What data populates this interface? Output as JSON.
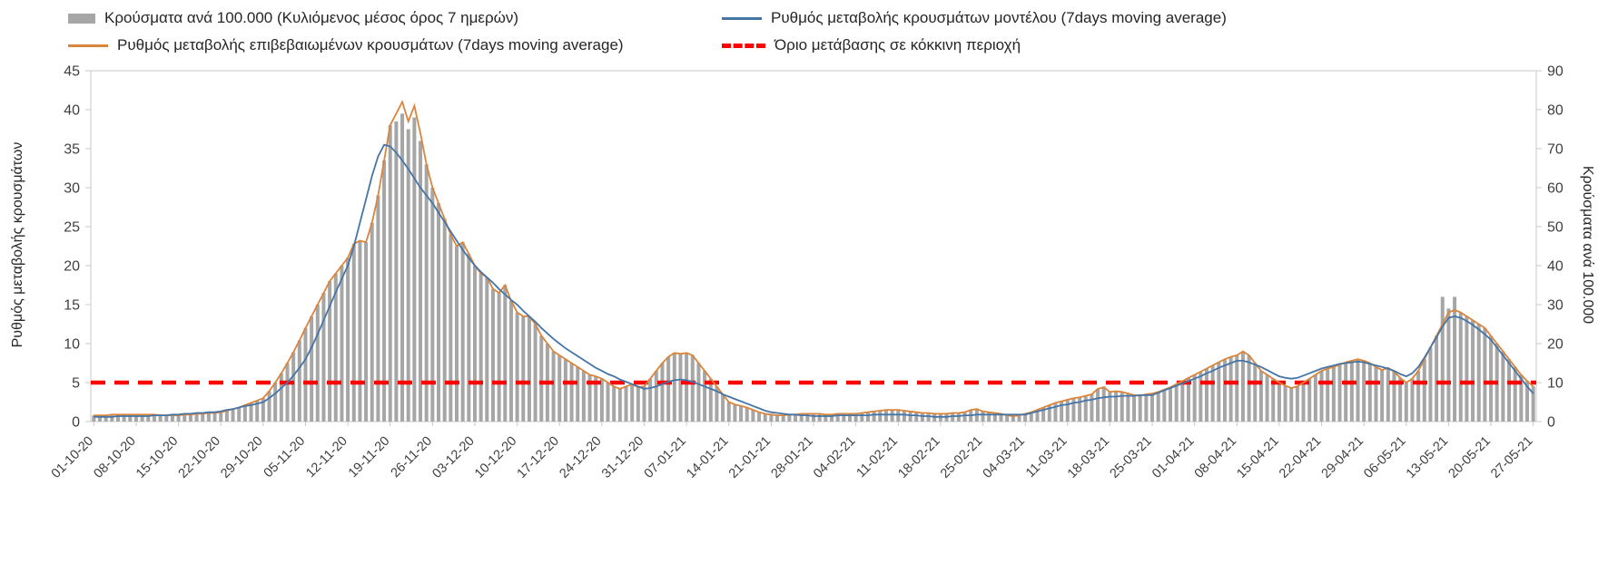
{
  "legend": {
    "row1_col1": "Κρούσματα ανά 100.000 (Κυλιόμενος μέσος όρος 7 ημερών)",
    "row1_col2": "Ρυθμός μεταβολής κρουσμάτων μοντέλου (7days moving average)",
    "row2_col1": "Ρυθμός μεταβολής επιβεβαιωμένων κρουσμάτων (7days moving average)",
    "row2_col2": "Όριο μετάβασης σε κόκκινη περιοχή"
  },
  "chart_data": {
    "type": "combo",
    "x_frequency": "daily",
    "x_start": "01-10-20",
    "x_end": "27-05-21",
    "x_tick_labels": [
      "01-10-20",
      "08-10-20",
      "15-10-20",
      "22-10-20",
      "29-10-20",
      "05-11-20",
      "12-11-20",
      "19-11-20",
      "26-11-20",
      "03-12-20",
      "10-12-20",
      "17-12-20",
      "24-12-20",
      "31-12-20",
      "07-01-21",
      "14-01-21",
      "21-01-21",
      "28-01-21",
      "04-02-21",
      "11-02-21",
      "18-02-21",
      "25-02-21",
      "04-03-21",
      "11-03-21",
      "18-03-21",
      "25-03-21",
      "01-04-21",
      "08-04-21",
      "15-04-21",
      "22-04-21",
      "29-04-21",
      "06-05-21",
      "13-05-21",
      "20-05-21",
      "27-05-21"
    ],
    "left_axis": {
      "title": "Ρυθμός μεταβολής κρουσμάτων",
      "min": 0,
      "max": 45,
      "ticks": [
        0,
        5,
        10,
        15,
        20,
        25,
        30,
        35,
        40,
        45
      ]
    },
    "right_axis": {
      "title": "Κρούσματα ανά 100.000",
      "min": 0,
      "max": 90,
      "ticks": [
        0,
        10,
        20,
        30,
        40,
        50,
        60,
        70,
        80,
        90
      ]
    },
    "series": [
      {
        "name": "Κρούσματα ανά 100.000 (Κυλιόμενος μέσος όρος 7 ημερών)",
        "type": "bar",
        "axis": "right",
        "color": "#a6a6a6",
        "values": [
          1.6,
          1.6,
          1.6,
          1.8,
          1.8,
          1.8,
          1.8,
          1.8,
          1.8,
          1.8,
          1.8,
          1.6,
          1.6,
          1.6,
          1.6,
          1.8,
          1.8,
          2.0,
          2.0,
          2.2,
          2.2,
          2.4,
          2.8,
          3.2,
          3.6,
          4.2,
          4.8,
          5.4,
          6.0,
          7.8,
          10.0,
          12.4,
          15.0,
          17.8,
          20.8,
          24.0,
          27.0,
          30.0,
          33.0,
          36.0,
          38.0,
          40.0,
          42.0,
          45.6,
          46.4,
          46.0,
          51.0,
          58.0,
          67.0,
          76.0,
          77.0,
          79.0,
          75.0,
          78.0,
          72.0,
          66.0,
          60.0,
          56.0,
          52.0,
          48.0,
          45.0,
          46.0,
          43.0,
          40.0,
          38.0,
          37.0,
          34.0,
          33.0,
          35.0,
          31.0,
          28.0,
          27.0,
          27.0,
          25.0,
          22.0,
          20.0,
          18.0,
          17.0,
          16.0,
          15.0,
          14.0,
          13.0,
          12.0,
          11.6,
          11.0,
          10.0,
          9.0,
          8.4,
          9.0,
          9.6,
          8.8,
          9.0,
          11.0,
          13.0,
          15.0,
          16.6,
          17.6,
          17.4,
          17.6,
          17.0,
          15.0,
          13.0,
          11.0,
          9.0,
          7.0,
          5.0,
          4.4,
          4.0,
          3.6,
          3.0,
          2.4,
          2.0,
          1.8,
          1.6,
          1.6,
          1.8,
          1.8,
          2.0,
          2.0,
          2.0,
          2.0,
          1.8,
          1.8,
          2.0,
          2.0,
          2.0,
          2.0,
          2.2,
          2.4,
          2.6,
          2.8,
          3.0,
          3.0,
          3.0,
          2.8,
          2.6,
          2.4,
          2.2,
          2.2,
          2.0,
          2.0,
          2.0,
          2.2,
          2.2,
          2.4,
          3.0,
          3.2,
          2.6,
          2.4,
          2.2,
          2.0,
          1.6,
          1.4,
          1.6,
          2.0,
          2.4,
          3.0,
          3.6,
          4.2,
          4.8,
          5.2,
          5.6,
          6.0,
          6.2,
          6.6,
          7.0,
          8.4,
          9.0,
          7.6,
          7.8,
          7.6,
          7.2,
          6.8,
          6.6,
          7.0,
          7.2,
          7.6,
          8.2,
          8.8,
          9.6,
          10.4,
          11.2,
          12.0,
          12.8,
          13.6,
          14.4,
          15.2,
          16.0,
          16.6,
          17.0,
          18.0,
          17.0,
          15.0,
          13.0,
          12.0,
          11.0,
          10.0,
          9.2,
          8.6,
          9.0,
          10.0,
          11.0,
          12.0,
          13.0,
          13.6,
          14.0,
          14.6,
          15.2,
          15.6,
          16.0,
          15.6,
          15.0,
          14.0,
          13.2,
          13.8,
          12.8,
          11.2,
          10.0,
          11.0,
          13.0,
          16.0,
          19.0,
          22.0,
          32.0,
          29.0,
          32.0,
          28.0,
          27.0,
          26.0,
          25.0,
          24.0,
          22.0,
          20.0,
          18.0,
          16.0,
          14.0,
          12.0,
          10.4,
          9.0
        ]
      },
      {
        "name": "Ρυθμός μεταβολής επιβεβαιωμένων κρουσμάτων (7days moving average)",
        "type": "line",
        "axis": "left",
        "color": "#d9853b",
        "values": [
          0.8,
          0.8,
          0.8,
          0.9,
          0.9,
          0.9,
          0.9,
          0.9,
          0.9,
          0.9,
          0.9,
          0.8,
          0.8,
          0.8,
          0.8,
          0.9,
          0.9,
          1.0,
          1.0,
          1.1,
          1.1,
          1.2,
          1.4,
          1.6,
          1.8,
          2.1,
          2.4,
          2.7,
          3.0,
          3.9,
          5.0,
          6.2,
          7.5,
          8.9,
          10.4,
          12.0,
          13.5,
          15.0,
          16.5,
          18.0,
          19.0,
          20.0,
          21.0,
          22.8,
          23.2,
          23.0,
          25.5,
          29.0,
          33.5,
          38.0,
          39.5,
          41.0,
          38.5,
          40.5,
          37.0,
          33.0,
          30.0,
          28.0,
          26.0,
          24.0,
          22.5,
          23.0,
          21.5,
          20.0,
          19.0,
          18.5,
          17.0,
          16.5,
          17.5,
          15.5,
          14.0,
          13.5,
          13.5,
          12.5,
          11.0,
          10.0,
          9.0,
          8.5,
          8.0,
          7.5,
          7.0,
          6.5,
          6.0,
          5.8,
          5.5,
          5.0,
          4.5,
          4.2,
          4.5,
          4.8,
          4.4,
          4.5,
          5.5,
          6.5,
          7.5,
          8.3,
          8.8,
          8.7,
          8.8,
          8.5,
          7.5,
          6.5,
          5.5,
          4.5,
          3.5,
          2.5,
          2.2,
          2.0,
          1.8,
          1.5,
          1.2,
          1.0,
          0.9,
          0.8,
          0.8,
          0.9,
          0.9,
          1.0,
          1.0,
          1.0,
          1.0,
          0.9,
          0.9,
          1.0,
          1.0,
          1.0,
          1.0,
          1.1,
          1.2,
          1.3,
          1.4,
          1.5,
          1.5,
          1.5,
          1.4,
          1.3,
          1.2,
          1.1,
          1.1,
          1.0,
          1.0,
          1.0,
          1.1,
          1.1,
          1.2,
          1.5,
          1.6,
          1.3,
          1.2,
          1.1,
          1.0,
          0.8,
          0.7,
          0.8,
          1.0,
          1.2,
          1.5,
          1.8,
          2.1,
          2.4,
          2.6,
          2.8,
          3.0,
          3.1,
          3.3,
          3.5,
          4.2,
          4.4,
          3.8,
          3.9,
          3.8,
          3.6,
          3.4,
          3.3,
          3.5,
          3.6,
          3.8,
          4.1,
          4.4,
          4.8,
          5.2,
          5.6,
          6.0,
          6.4,
          6.8,
          7.2,
          7.6,
          8.0,
          8.3,
          8.5,
          9.0,
          8.5,
          7.5,
          6.5,
          6.0,
          5.5,
          5.0,
          4.6,
          4.3,
          4.5,
          5.0,
          5.5,
          6.0,
          6.5,
          6.8,
          7.0,
          7.3,
          7.6,
          7.8,
          8.0,
          7.8,
          7.5,
          7.0,
          6.6,
          6.9,
          6.4,
          5.6,
          5.0,
          5.5,
          6.5,
          8.0,
          9.5,
          11.0,
          12.5,
          14.0,
          14.3,
          14.0,
          13.5,
          13.0,
          12.5,
          12.0,
          11.0,
          10.0,
          9.0,
          8.0,
          7.0,
          6.0,
          5.2,
          4.5
        ]
      },
      {
        "name": "Ρυθμός μεταβολής κρουσμάτων μοντέλου (7days moving average)",
        "type": "line",
        "axis": "left",
        "color": "#4575a7",
        "values": [
          0.6,
          0.6,
          0.6,
          0.6,
          0.7,
          0.7,
          0.7,
          0.7,
          0.7,
          0.7,
          0.8,
          0.8,
          0.8,
          0.9,
          0.9,
          1.0,
          1.0,
          1.1,
          1.1,
          1.2,
          1.2,
          1.3,
          1.5,
          1.6,
          1.8,
          2.0,
          2.1,
          2.3,
          2.5,
          3.0,
          3.6,
          4.3,
          5.0,
          5.9,
          6.9,
          8.0,
          9.5,
          11.2,
          13.0,
          14.8,
          16.6,
          18.3,
          20.0,
          22.5,
          25.5,
          28.5,
          31.5,
          34.0,
          35.5,
          35.3,
          34.5,
          33.5,
          32.4,
          31.2,
          30.0,
          29.0,
          28.0,
          26.8,
          25.6,
          24.4,
          23.2,
          22.0,
          21.0,
          20.0,
          19.2,
          18.5,
          17.8,
          17.0,
          16.3,
          15.6,
          15.0,
          14.2,
          13.5,
          12.8,
          12.0,
          11.3,
          10.6,
          10.0,
          9.4,
          8.9,
          8.4,
          7.9,
          7.4,
          6.9,
          6.5,
          6.1,
          5.8,
          5.4,
          5.1,
          4.8,
          4.5,
          4.2,
          4.3,
          4.5,
          4.8,
          5.1,
          5.3,
          5.4,
          5.3,
          5.1,
          4.8,
          4.5,
          4.2,
          3.9,
          3.5,
          3.2,
          2.9,
          2.6,
          2.3,
          2.0,
          1.7,
          1.4,
          1.2,
          1.1,
          1.0,
          0.9,
          0.9,
          0.8,
          0.8,
          0.7,
          0.7,
          0.7,
          0.7,
          0.8,
          0.8,
          0.8,
          0.8,
          0.8,
          0.8,
          0.9,
          0.9,
          0.9,
          0.9,
          0.9,
          0.9,
          0.8,
          0.8,
          0.7,
          0.7,
          0.6,
          0.6,
          0.6,
          0.7,
          0.7,
          0.8,
          0.8,
          0.9,
          0.9,
          0.9,
          0.9,
          0.9,
          0.9,
          0.9,
          0.9,
          0.9,
          1.1,
          1.3,
          1.5,
          1.7,
          1.9,
          2.1,
          2.2,
          2.4,
          2.5,
          2.7,
          2.8,
          3.0,
          3.1,
          3.2,
          3.2,
          3.3,
          3.3,
          3.3,
          3.4,
          3.4,
          3.4,
          3.7,
          4.0,
          4.3,
          4.6,
          4.9,
          5.2,
          5.5,
          5.8,
          6.2,
          6.5,
          6.9,
          7.2,
          7.5,
          7.8,
          7.8,
          7.6,
          7.3,
          7.0,
          6.6,
          6.2,
          5.8,
          5.6,
          5.5,
          5.6,
          5.9,
          6.2,
          6.5,
          6.8,
          7.0,
          7.2,
          7.4,
          7.5,
          7.6,
          7.7,
          7.6,
          7.4,
          7.2,
          7.0,
          6.8,
          6.5,
          6.1,
          5.8,
          6.2,
          7.0,
          8.2,
          9.5,
          10.8,
          12.2,
          13.3,
          13.5,
          13.3,
          12.9,
          12.4,
          11.8,
          11.2,
          10.5,
          9.5,
          8.5,
          7.5,
          6.5,
          5.5,
          4.5,
          3.6
        ]
      },
      {
        "name": "Όριο μετάβασης σε κόκκινη περιοχή",
        "type": "threshold",
        "axis": "left",
        "color": "#ff0000",
        "value": 5
      }
    ]
  }
}
